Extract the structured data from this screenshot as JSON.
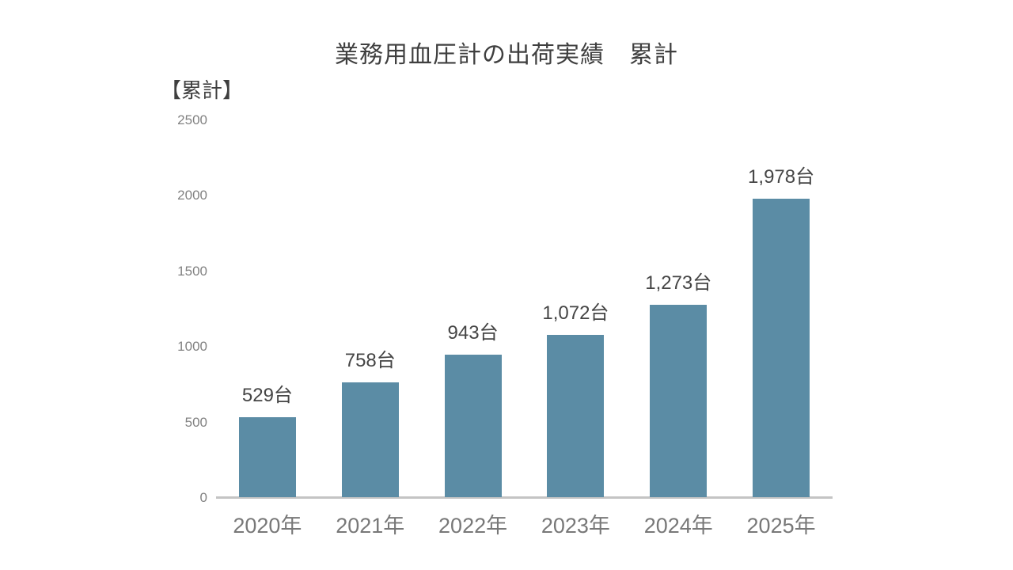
{
  "page": {
    "title": "業務用血圧計の出荷実績　累計",
    "unit_label": "【累計】"
  },
  "chart_data": {
    "type": "bar",
    "title": "業務用血圧計の出荷実績　累計",
    "ylabel": "【累計】",
    "xlabel": "",
    "categories": [
      "2020年",
      "2021年",
      "2022年",
      "2023年",
      "2024年",
      "2025年"
    ],
    "values": [
      529,
      758,
      943,
      1072,
      1273,
      1978
    ],
    "value_labels": [
      "529台",
      "758台",
      "943台",
      "1,072台",
      "1,273台",
      "1,978台"
    ],
    "ylim": [
      0,
      2500
    ],
    "yticks": [
      0,
      500,
      1000,
      1500,
      2000,
      2500
    ],
    "grid": "off",
    "legend": "none",
    "bar_color": "#5b8ca5",
    "axis_line_color": "#c4c4c4",
    "tick_label_color": "#828282",
    "category_label_color": "#787878",
    "data_label_color": "#454545",
    "title_color": "#3f3f3f"
  }
}
